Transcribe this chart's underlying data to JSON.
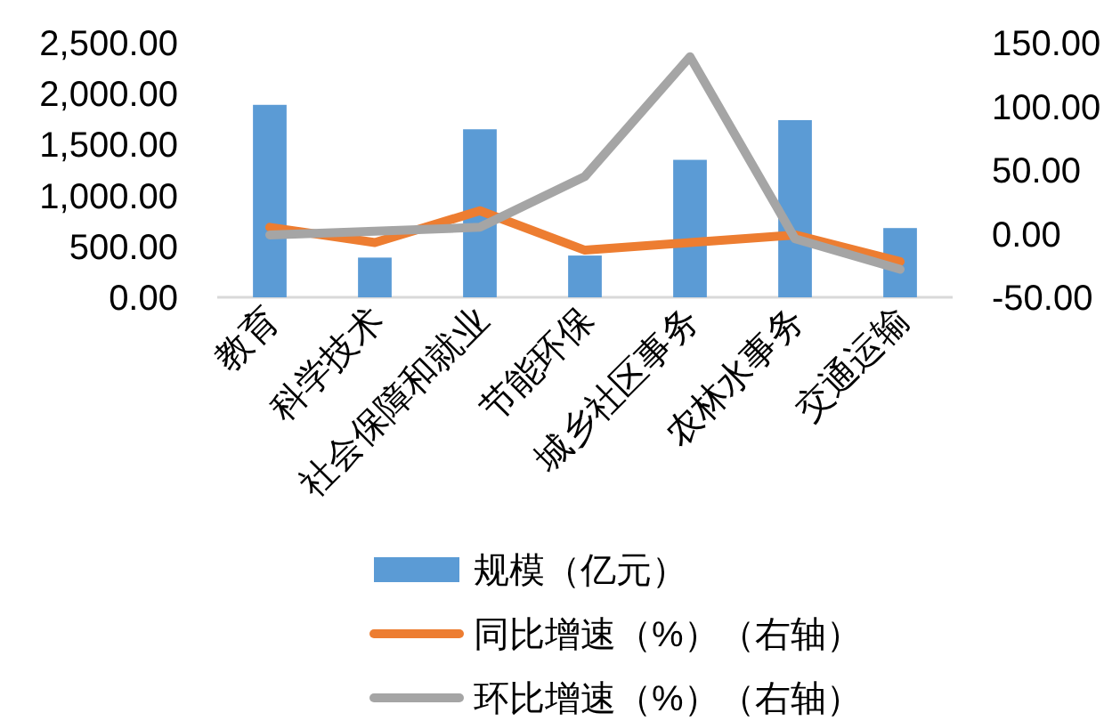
{
  "chart_data": {
    "type": "bar",
    "categories": [
      "教育",
      "科学技术",
      "社会保障和就业",
      "节能环保",
      "城乡社区事务",
      "农林水事务",
      "交通运输"
    ],
    "series": [
      {
        "name": "规模（亿元）",
        "color": "#5b9bd5",
        "values": [
          1890,
          390,
          1650,
          410,
          1350,
          1740,
          680
        ]
      },
      {
        "name": "同比增速（%）（右轴）",
        "type": "line",
        "axis": "y2",
        "color": "#ed7d31",
        "values": [
          5,
          -7,
          18,
          -13,
          -7,
          -1,
          -22
        ]
      },
      {
        "name": "环比增速（%）（右轴）",
        "type": "line",
        "axis": "y2",
        "color": "#a5a5a5",
        "values": [
          -1,
          2,
          5,
          45,
          139,
          -4,
          -28
        ]
      }
    ],
    "ylim": [
      0,
      2500
    ],
    "yticks": [
      {
        "value": 0,
        "label": "0.00"
      },
      {
        "value": 500,
        "label": "500.00"
      },
      {
        "value": 1000,
        "label": "1,000.00"
      },
      {
        "value": 1500,
        "label": "1,500.00"
      },
      {
        "value": 2000,
        "label": "2,000.00"
      },
      {
        "value": 2500,
        "label": "2,500.00"
      }
    ],
    "y2lim": [
      -50,
      150
    ],
    "y2ticks": [
      {
        "value": -50,
        "label": "-50.00"
      },
      {
        "value": 0,
        "label": "0.00"
      },
      {
        "value": 50,
        "label": "50.00"
      },
      {
        "value": 100,
        "label": "100.00"
      },
      {
        "value": 150,
        "label": "150.00"
      }
    ],
    "grid": false,
    "legend": "bottom",
    "marker": "none",
    "line_style": "solid"
  }
}
